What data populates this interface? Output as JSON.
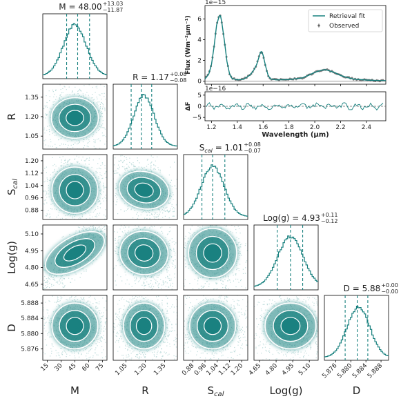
{
  "colors": {
    "teal": "#17807e",
    "dark": "#1e2a2a",
    "point": "#555555"
  },
  "params": [
    {
      "key": "M",
      "label": "M",
      "ticks": [
        "15",
        "30",
        "45",
        "60",
        "75"
      ],
      "range": [
        10,
        80
      ],
      "median": 48.0,
      "plus": "+13.03",
      "minus": "−11.87",
      "title_main": "M = 48.00"
    },
    {
      "key": "R",
      "label": "R",
      "ticks": [
        "1.05",
        "1.20",
        "1.35"
      ],
      "range": [
        0.95,
        1.45
      ],
      "median": 1.17,
      "plus": "+0.08",
      "minus": "−0.08",
      "title_main": "R = 1.17"
    },
    {
      "key": "Scal",
      "label": "S",
      "label_sub": "cal",
      "ticks": [
        "0.88",
        "0.96",
        "1.04",
        "1.12",
        "1.20"
      ],
      "range": [
        0.82,
        1.24
      ],
      "median": 1.01,
      "plus": "+0.08",
      "minus": "−0.07",
      "title_main": "S",
      "title_sub": "cal",
      "title_rest": " = 1.01"
    },
    {
      "key": "logg",
      "label": "Log(g)",
      "ticks": [
        "4.65",
        "4.80",
        "4.95",
        "5.10"
      ],
      "range": [
        4.6,
        5.18
      ],
      "median": 4.93,
      "plus": "+0.11",
      "minus": "−0.12",
      "title_main": "Log(g) = 4.93"
    },
    {
      "key": "D",
      "label": "D",
      "ticks": [
        "5.876",
        "5.880",
        "5.884",
        "5.888"
      ],
      "range": [
        5.873,
        5.89
      ],
      "median": 5.88,
      "plus": "+0.00",
      "minus": "−0.00",
      "title_main": "D = 5.88"
    }
  ],
  "spectrum": {
    "exponent_top": "1e−15",
    "exponent_bottom": "1e−16",
    "ylabel_top": "Flux (Wm⁻²μm⁻¹)",
    "ylabel_bottom": "ΔF",
    "xlabel": "Wavelength (μm)",
    "yticks_top": [
      "0",
      "2",
      "4",
      "6"
    ],
    "yticks_bottom": [
      "−5",
      "0",
      "5"
    ],
    "xticks": [
      "1.2",
      "1.4",
      "1.6",
      "1.8",
      "2.0",
      "2.2",
      "2.4"
    ],
    "legend": [
      "Retrieval fit",
      "Observed"
    ]
  },
  "chart_data": [
    {
      "type": "scatter",
      "title": "corner plot",
      "parameters": [
        "M",
        "R",
        "Scal",
        "Log(g)",
        "D"
      ],
      "medians": {
        "M": 48.0,
        "R": 1.17,
        "Scal": 1.01,
        "Log(g)": 4.93,
        "D": 5.88
      },
      "upper_errors": {
        "M": 13.03,
        "R": 0.08,
        "Scal": 0.08,
        "Log(g)": 0.11,
        "D": 0.0
      },
      "lower_errors": {
        "M": 11.87,
        "R": 0.08,
        "Scal": 0.07,
        "Log(g)": 0.12,
        "D": 0.0
      },
      "quantile_lines": {
        "M": [
          36,
          48,
          61
        ],
        "R": [
          1.09,
          1.17,
          1.25
        ],
        "Scal": [
          0.94,
          1.01,
          1.09
        ],
        "Log(g)": [
          4.81,
          4.93,
          5.04
        ],
        "D": [
          5.8785,
          5.8817,
          5.8845
        ]
      },
      "centers": {
        "M": 45,
        "R": 1.19,
        "Scal": 1.01,
        "Log(g)": 4.93,
        "D": 5.882
      }
    },
    {
      "type": "line",
      "title": "",
      "xlabel": "Wavelength (μm)",
      "ylabel": "Flux (Wm⁻²μm⁻¹)",
      "xlim": [
        1.15,
        2.55
      ],
      "ylim": [
        -0.3,
        7.3
      ],
      "y_scale": "1e-15",
      "series": [
        {
          "name": "Retrieval fit",
          "x": [
            1.15,
            1.18,
            1.2,
            1.22,
            1.24,
            1.26,
            1.27,
            1.28,
            1.3,
            1.32,
            1.34,
            1.36,
            1.4,
            1.45,
            1.5,
            1.53,
            1.55,
            1.57,
            1.58,
            1.59,
            1.6,
            1.62,
            1.64,
            1.66,
            1.7,
            1.8,
            1.9,
            1.95,
            2.0,
            2.05,
            2.08,
            2.1,
            2.15,
            2.2,
            2.25,
            2.3,
            2.4,
            2.5,
            2.55
          ],
          "y": [
            0.2,
            0.7,
            1.6,
            3.3,
            5.4,
            6.3,
            6.3,
            5.7,
            3.9,
            1.9,
            0.7,
            0.25,
            0.12,
            0.18,
            0.6,
            1.1,
            1.6,
            2.4,
            2.8,
            2.85,
            2.5,
            1.4,
            0.5,
            0.2,
            0.12,
            0.15,
            0.3,
            0.55,
            0.85,
            1.05,
            1.1,
            1.05,
            0.85,
            0.55,
            0.35,
            0.2,
            0.1,
            0.05,
            0.05
          ]
        },
        {
          "name": "Observed",
          "note": "points follow retrieval fit"
        }
      ]
    },
    {
      "type": "line",
      "title": "",
      "ylabel": "ΔF",
      "ylim": [
        -6.5,
        6.5
      ],
      "y_scale": "1e-16",
      "series": [
        {
          "name": "",
          "values": "residuals oscillating about 0 within ±2"
        }
      ]
    }
  ]
}
